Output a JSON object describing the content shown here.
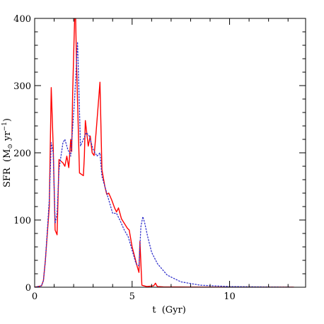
{
  "chart_data": {
    "type": "line",
    "xlabel": "t  (Gyr)",
    "ylabel_main": "SFR  (M",
    "ylabel_sun": "⊙",
    "ylabel_unit": " yr",
    "ylabel_exp": "−1",
    "ylabel_close": ")",
    "xlim": [
      0,
      13.9
    ],
    "ylim": [
      0,
      400
    ],
    "x_ticks": [
      0,
      5,
      10
    ],
    "x_tick_labels": [
      "0",
      "5",
      "10"
    ],
    "y_ticks": [
      0,
      100,
      200,
      300,
      400
    ],
    "y_tick_labels": [
      "0",
      "100",
      "200",
      "300",
      "400"
    ],
    "grid": false,
    "series": [
      {
        "style": "solid",
        "color": "#ff0000",
        "x": [
          0.0,
          0.35,
          0.45,
          0.55,
          0.75,
          0.85,
          0.95,
          1.05,
          1.15,
          1.25,
          1.45,
          1.55,
          1.65,
          1.75,
          1.85,
          1.9,
          1.95,
          2.05,
          2.1,
          2.15,
          2.3,
          2.5,
          2.55,
          2.6,
          2.75,
          2.85,
          2.95,
          3.05,
          3.15,
          3.35,
          3.45,
          3.6,
          3.7,
          3.8,
          3.95,
          4.1,
          4.2,
          4.3,
          4.45,
          4.6,
          4.75,
          4.85,
          5.0,
          5.25,
          5.35,
          5.4,
          5.5,
          5.75,
          6.1,
          6.2,
          6.25,
          6.3,
          6.6,
          8.0,
          10.0,
          13.3
        ],
        "y": [
          0,
          2,
          10,
          40,
          120,
          297,
          210,
          85,
          78,
          190,
          185,
          180,
          195,
          178,
          220,
          202,
          290,
          400,
          403,
          330,
          170,
          166,
          195,
          248,
          210,
          225,
          200,
          196,
          230,
          305,
          175,
          150,
          138,
          140,
          130,
          118,
          112,
          118,
          102,
          95,
          88,
          85,
          60,
          32,
          22,
          68,
          3,
          1,
          2,
          6,
          3,
          1,
          0.5,
          0.2,
          0.1,
          0
        ]
      },
      {
        "style": "dotted",
        "color": "#3333cc",
        "x": [
          0.0,
          0.35,
          0.45,
          0.55,
          0.75,
          0.85,
          0.95,
          1.05,
          1.15,
          1.25,
          1.45,
          1.55,
          1.7,
          1.85,
          2.05,
          2.2,
          2.35,
          2.5,
          2.65,
          2.8,
          3.0,
          3.2,
          3.35,
          3.45,
          3.65,
          3.8,
          4.0,
          4.2,
          4.4,
          4.6,
          4.8,
          5.0,
          5.2,
          5.35,
          5.45,
          5.55,
          5.65,
          5.8,
          6.0,
          6.3,
          6.8,
          7.5,
          8.5,
          10.0,
          12.0,
          13.3
        ],
        "y": [
          0,
          2,
          10,
          40,
          130,
          215,
          200,
          95,
          110,
          175,
          215,
          220,
          205,
          195,
          280,
          365,
          210,
          220,
          230,
          225,
          205,
          195,
          200,
          165,
          145,
          130,
          110,
          110,
          98,
          85,
          75,
          55,
          35,
          32,
          90,
          105,
          95,
          75,
          52,
          35,
          18,
          8,
          3,
          1,
          0.3,
          0
        ]
      }
    ]
  }
}
